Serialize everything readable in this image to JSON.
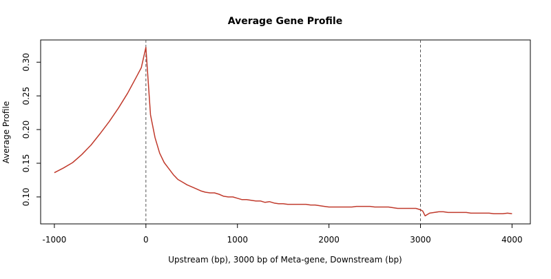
{
  "chart_data": {
    "type": "line",
    "title": "Average Gene Profile",
    "xlabel": "Upstream (bp), 3000 bp of Meta-gene, Downstream (bp)",
    "ylabel": "Average Profile",
    "xlim": [
      -1150,
      4200
    ],
    "ylim": [
      0.06,
      0.333
    ],
    "x_ticks": [
      -1000,
      0,
      1000,
      2000,
      3000,
      4000
    ],
    "x_tick_labels": [
      "-1000",
      "0",
      "1000",
      "2000",
      "3000",
      "4000"
    ],
    "y_ticks": [
      0.1,
      0.15,
      0.2,
      0.25,
      0.3
    ],
    "y_tick_labels": [
      "0.10",
      "0.15",
      "0.20",
      "0.25",
      "0.30"
    ],
    "grid": false,
    "vlines": [
      0,
      3000
    ],
    "series": [
      {
        "color": "#c0392b",
        "x": [
          -1000,
          -900,
          -800,
          -700,
          -600,
          -500,
          -400,
          -300,
          -200,
          -100,
          -50,
          0,
          50,
          100,
          150,
          200,
          250,
          300,
          350,
          400,
          450,
          500,
          550,
          600,
          650,
          700,
          750,
          800,
          850,
          900,
          950,
          1000,
          1050,
          1100,
          1150,
          1200,
          1250,
          1300,
          1350,
          1400,
          1450,
          1500,
          1550,
          1600,
          1650,
          1700,
          1750,
          1800,
          1850,
          1900,
          1950,
          2000,
          2050,
          2100,
          2150,
          2200,
          2250,
          2300,
          2350,
          2400,
          2450,
          2500,
          2550,
          2600,
          2650,
          2700,
          2750,
          2800,
          2850,
          2900,
          2950,
          3000,
          3025,
          3050,
          3100,
          3150,
          3200,
          3250,
          3300,
          3350,
          3400,
          3450,
          3500,
          3550,
          3600,
          3650,
          3700,
          3750,
          3800,
          3850,
          3900,
          3950,
          4000
        ],
        "y": [
          0.136,
          0.143,
          0.151,
          0.163,
          0.177,
          0.194,
          0.212,
          0.232,
          0.254,
          0.279,
          0.292,
          0.322,
          0.222,
          0.188,
          0.165,
          0.151,
          0.142,
          0.133,
          0.126,
          0.122,
          0.118,
          0.115,
          0.112,
          0.109,
          0.107,
          0.106,
          0.106,
          0.104,
          0.101,
          0.1,
          0.1,
          0.098,
          0.096,
          0.096,
          0.095,
          0.094,
          0.094,
          0.092,
          0.093,
          0.091,
          0.09,
          0.09,
          0.089,
          0.089,
          0.089,
          0.089,
          0.089,
          0.088,
          0.088,
          0.087,
          0.086,
          0.085,
          0.085,
          0.085,
          0.085,
          0.085,
          0.085,
          0.086,
          0.086,
          0.086,
          0.086,
          0.085,
          0.085,
          0.085,
          0.085,
          0.084,
          0.083,
          0.083,
          0.083,
          0.083,
          0.083,
          0.081,
          0.079,
          0.072,
          0.076,
          0.077,
          0.078,
          0.078,
          0.077,
          0.077,
          0.077,
          0.077,
          0.077,
          0.076,
          0.076,
          0.076,
          0.076,
          0.076,
          0.075,
          0.075,
          0.075,
          0.076,
          0.075
        ]
      }
    ]
  }
}
